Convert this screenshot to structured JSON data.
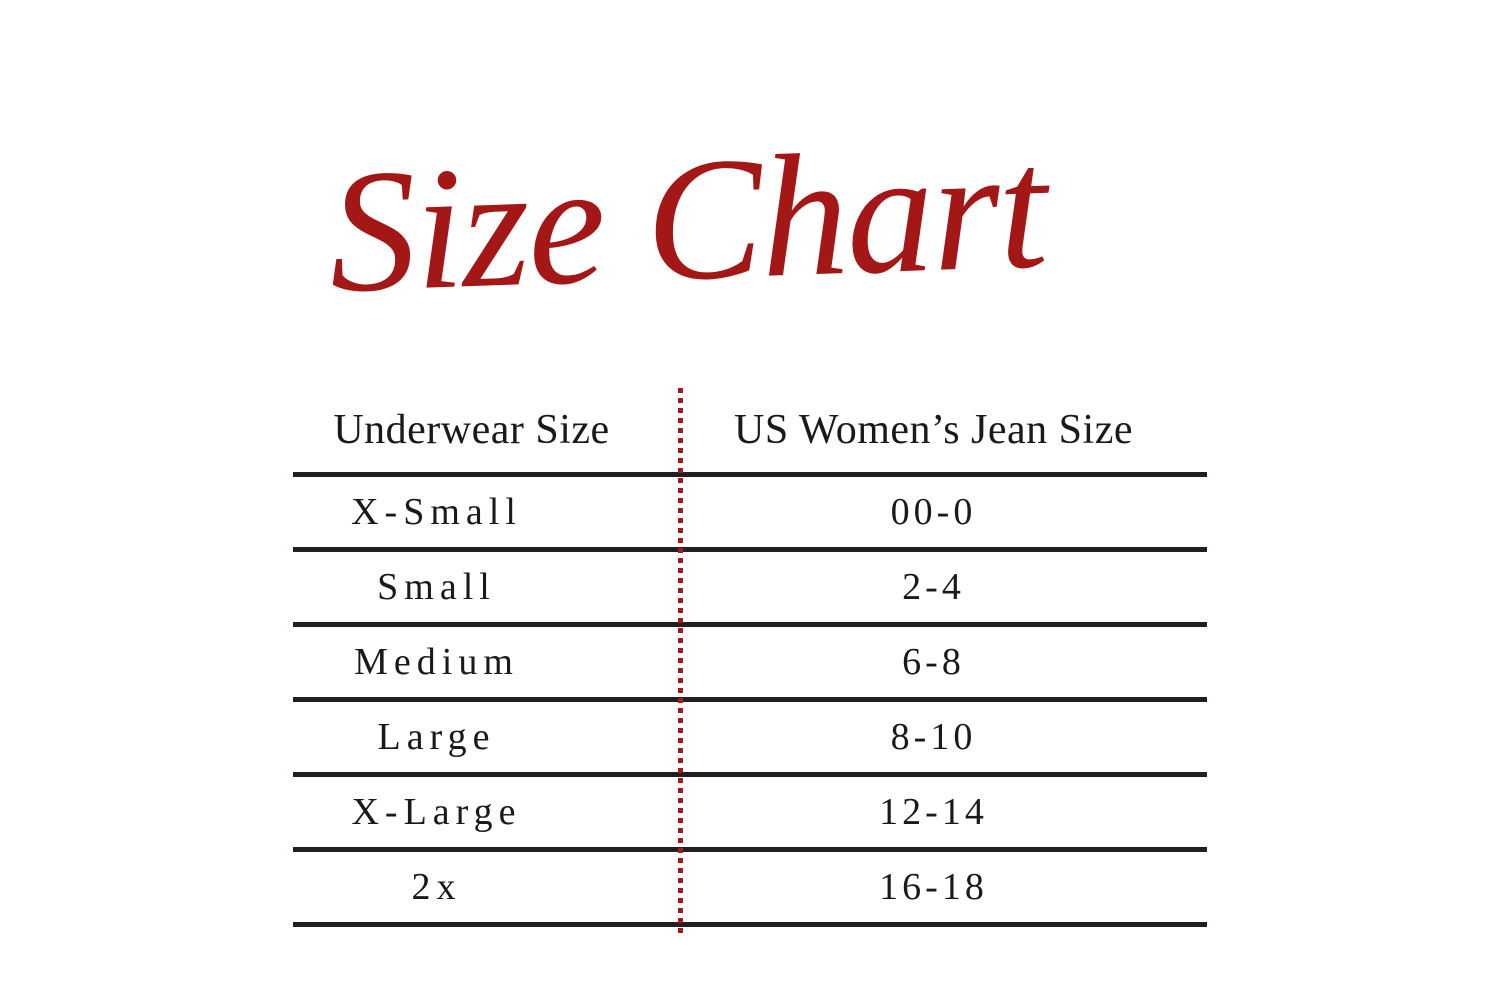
{
  "title": "Size Chart",
  "colors": {
    "background": "#ffffff",
    "accent_red": "#a31717",
    "divider_red": "#a41b1b",
    "line_dark": "#231f20"
  },
  "chart_data": {
    "type": "table",
    "title": "Size Chart",
    "columns": [
      "Underwear Size",
      "US Women’s Jean Size"
    ],
    "rows": [
      [
        "X-Small",
        "00-0"
      ],
      [
        "Small",
        "2-4"
      ],
      [
        "Medium",
        "6-8"
      ],
      [
        "Large",
        "8-10"
      ],
      [
        "X-Large",
        "12-14"
      ],
      [
        "2x",
        "16-18"
      ]
    ],
    "layout_hints": {
      "column_divider": "vertical dotted red line",
      "row_separators": "horizontal dark lines",
      "grid": "horizontal lines only"
    }
  }
}
